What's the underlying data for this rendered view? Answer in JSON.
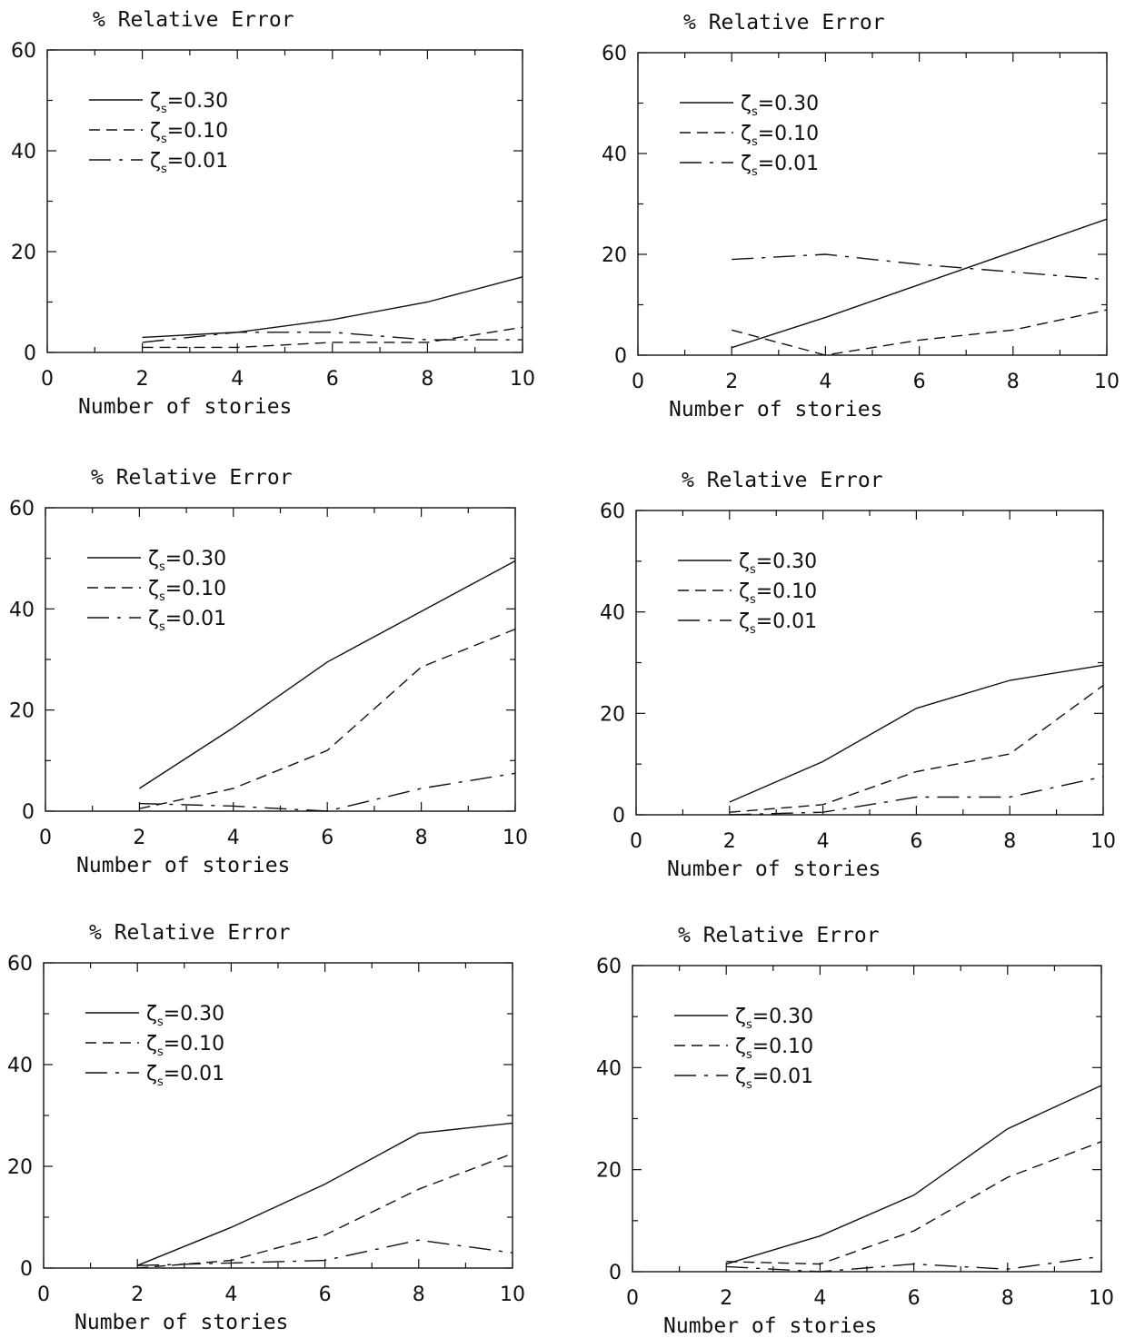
{
  "chart_data": [
    {
      "type": "line",
      "title": "% Relative Error",
      "xlabel": "Number of stories",
      "ylabel": "",
      "xlim": [
        0,
        10
      ],
      "ylim": [
        0,
        60
      ],
      "xticks": [
        0,
        2,
        4,
        6,
        8,
        10
      ],
      "yticks": [
        0,
        20,
        40,
        60
      ],
      "legend_position": "top-left",
      "x": [
        2,
        4,
        6,
        8,
        10
      ],
      "series": [
        {
          "name": "ζs=0.30",
          "symbol": "ζ",
          "subscript": "s",
          "value_text": "=0.30",
          "style": "solid",
          "values": [
            3,
            4,
            6.5,
            10,
            15
          ]
        },
        {
          "name": "ζs=0.10",
          "symbol": "ζ",
          "subscript": "s",
          "value_text": "=0.10",
          "style": "dashed",
          "values": [
            1,
            1,
            2,
            2,
            5
          ]
        },
        {
          "name": "ζs=0.01",
          "symbol": "ζ",
          "subscript": "s",
          "value_text": "=0.01",
          "style": "long-dash",
          "values": [
            2,
            4,
            4,
            2.5,
            2.5
          ]
        }
      ]
    },
    {
      "type": "line",
      "title": "% Relative Error",
      "xlabel": "Number of stories",
      "ylabel": "",
      "xlim": [
        0,
        10
      ],
      "ylim": [
        0,
        60
      ],
      "xticks": [
        0,
        2,
        4,
        6,
        8,
        10
      ],
      "yticks": [
        0,
        20,
        40,
        60
      ],
      "legend_position": "top-left",
      "x": [
        2,
        4,
        6,
        8,
        10
      ],
      "series": [
        {
          "name": "ζs=0.30",
          "symbol": "ζ",
          "subscript": "s",
          "value_text": "=0.30",
          "style": "solid",
          "values": [
            1.5,
            7.5,
            14,
            20.5,
            27
          ]
        },
        {
          "name": "ζs=0.10",
          "symbol": "ζ",
          "subscript": "s",
          "value_text": "=0.10",
          "style": "dashed",
          "values": [
            5,
            0,
            3,
            5,
            9
          ]
        },
        {
          "name": "ζs=0.01",
          "symbol": "ζ",
          "subscript": "s",
          "value_text": "=0.01",
          "style": "long-dash",
          "values": [
            19,
            20,
            18,
            16.5,
            15
          ]
        }
      ]
    },
    {
      "type": "line",
      "title": "% Relative Error",
      "xlabel": "Number of stories",
      "ylabel": "",
      "xlim": [
        0,
        10
      ],
      "ylim": [
        0,
        60
      ],
      "xticks": [
        0,
        2,
        4,
        6,
        8,
        10
      ],
      "yticks": [
        0,
        20,
        40,
        60
      ],
      "legend_position": "top-left",
      "x": [
        2,
        4,
        6,
        8,
        10
      ],
      "series": [
        {
          "name": "ζs=0.30",
          "symbol": "ζ",
          "subscript": "s",
          "value_text": "=0.30",
          "style": "solid",
          "values": [
            4.5,
            16.5,
            29.5,
            39.5,
            49.5
          ]
        },
        {
          "name": "ζs=0.10",
          "symbol": "ζ",
          "subscript": "s",
          "value_text": "=0.10",
          "style": "dashed",
          "values": [
            0.5,
            4.5,
            12,
            28.5,
            36
          ]
        },
        {
          "name": "ζs=0.01",
          "symbol": "ζ",
          "subscript": "s",
          "value_text": "=0.01",
          "style": "long-dash",
          "values": [
            1.5,
            1,
            0,
            4.5,
            7.5
          ]
        }
      ]
    },
    {
      "type": "line",
      "title": "% Relative Error",
      "xlabel": "Number of stories",
      "ylabel": "",
      "xlim": [
        0,
        10
      ],
      "ylim": [
        0,
        60
      ],
      "xticks": [
        0,
        2,
        4,
        6,
        8,
        10
      ],
      "yticks": [
        0,
        20,
        40,
        60
      ],
      "legend_position": "top-left",
      "x": [
        2,
        4,
        6,
        8,
        10
      ],
      "series": [
        {
          "name": "ζs=0.30",
          "symbol": "ζ",
          "subscript": "s",
          "value_text": "=0.30",
          "style": "solid",
          "values": [
            2.5,
            10.5,
            21,
            26.5,
            29.5
          ]
        },
        {
          "name": "ζs=0.10",
          "symbol": "ζ",
          "subscript": "s",
          "value_text": "=0.10",
          "style": "dashed",
          "values": [
            0.5,
            2,
            8.5,
            12,
            25.5
          ]
        },
        {
          "name": "ζs=0.01",
          "symbol": "ζ",
          "subscript": "s",
          "value_text": "=0.01",
          "style": "long-dash",
          "values": [
            0,
            0.5,
            3.5,
            3.5,
            7.5
          ]
        }
      ]
    },
    {
      "type": "line",
      "title": "% Relative Error",
      "xlabel": "Number of stories",
      "ylabel": "",
      "xlim": [
        0,
        10
      ],
      "ylim": [
        0,
        60
      ],
      "xticks": [
        0,
        2,
        4,
        6,
        8,
        10
      ],
      "yticks": [
        0,
        20,
        40,
        60
      ],
      "legend_position": "top-left",
      "x": [
        2,
        4,
        6,
        8,
        10
      ],
      "series": [
        {
          "name": "ζs=0.30",
          "symbol": "ζ",
          "subscript": "s",
          "value_text": "=0.30",
          "style": "solid",
          "values": [
            0.5,
            8,
            16.5,
            26.5,
            28.5
          ]
        },
        {
          "name": "ζs=0.10",
          "symbol": "ζ",
          "subscript": "s",
          "value_text": "=0.10",
          "style": "dashed",
          "values": [
            0,
            1.5,
            6.5,
            15.5,
            22.5
          ]
        },
        {
          "name": "ζs=0.01",
          "symbol": "ζ",
          "subscript": "s",
          "value_text": "=0.01",
          "style": "long-dash",
          "values": [
            0.5,
            1,
            1.5,
            5.5,
            3
          ]
        }
      ]
    },
    {
      "type": "line",
      "title": "% Relative Error",
      "xlabel": "Number of stories",
      "ylabel": "",
      "xlim": [
        0,
        10
      ],
      "ylim": [
        0,
        60
      ],
      "xticks": [
        0,
        2,
        4,
        6,
        8,
        10
      ],
      "yticks": [
        0,
        20,
        40,
        60
      ],
      "legend_position": "top-left",
      "x": [
        2,
        4,
        6,
        8,
        10
      ],
      "series": [
        {
          "name": "ζs=0.30",
          "symbol": "ζ",
          "subscript": "s",
          "value_text": "=0.30",
          "style": "solid",
          "values": [
            1.5,
            7,
            15,
            28,
            36.5
          ]
        },
        {
          "name": "ζs=0.10",
          "symbol": "ζ",
          "subscript": "s",
          "value_text": "=0.10",
          "style": "dashed",
          "values": [
            2,
            1.5,
            8,
            18.5,
            25.5
          ]
        },
        {
          "name": "ζs=0.01",
          "symbol": "ζ",
          "subscript": "s",
          "value_text": "=0.01",
          "style": "long-dash",
          "values": [
            1,
            0,
            1.5,
            0.5,
            3
          ]
        }
      ]
    }
  ]
}
